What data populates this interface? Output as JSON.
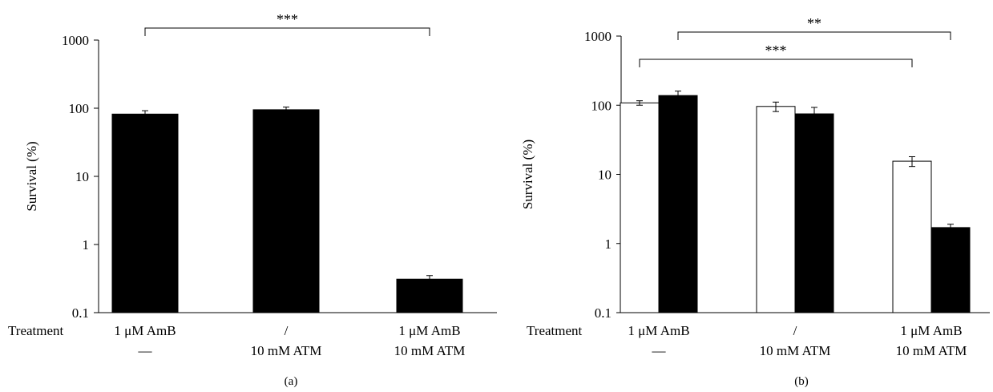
{
  "colors": {
    "ink": "#000000",
    "filled_bar": "#000000",
    "open_bar": "#ffffff"
  },
  "chart_data": [
    {
      "type": "bar",
      "panel_label": "(a)",
      "ylabel": "Survival (%)",
      "yscale": "log",
      "ylim": [
        0.1,
        1000
      ],
      "yticks": [
        "0.1",
        "1",
        "10",
        "100",
        "1000"
      ],
      "treatment_label": "Treatment",
      "categories": [
        {
          "line1": "1 μM AmB",
          "line2": "—"
        },
        {
          "line1": "/",
          "line2": "10 mM ATM"
        },
        {
          "line1": "1 μM AmB",
          "line2": "10 mM ATM"
        }
      ],
      "series": [
        {
          "color": "#000000",
          "values": [
            82,
            95,
            0.31
          ],
          "errors": [
            10,
            9,
            0.04
          ]
        }
      ],
      "significance": [
        {
          "from": 0,
          "to": 2,
          "label": "***"
        }
      ]
    },
    {
      "type": "bar",
      "panel_label": "(b)",
      "ylabel": "Survival (%)",
      "yscale": "log",
      "ylim": [
        0.1,
        1000
      ],
      "yticks": [
        "0.1",
        "1",
        "10",
        "100",
        "1000"
      ],
      "treatment_label": "Treatment",
      "categories": [
        {
          "line1": "1 μM AmB",
          "line2": "—"
        },
        {
          "line1": "/",
          "line2": "10 mM ATM"
        },
        {
          "line1": "1 μM AmB",
          "line2": "10 mM ATM"
        }
      ],
      "series": [
        {
          "color": "#ffffff",
          "values": [
            108,
            96,
            15.5
          ],
          "errors": [
            8,
            15,
            2.5
          ]
        },
        {
          "color": "#000000",
          "values": [
            138,
            75,
            1.7
          ],
          "errors": [
            22,
            18,
            0.2
          ]
        }
      ],
      "significance": [
        {
          "from_bar": [
            0,
            0
          ],
          "to_bar": [
            0,
            2
          ],
          "label": "***"
        },
        {
          "from_bar": [
            1,
            0
          ],
          "to_bar": [
            1,
            2
          ],
          "label": "**"
        }
      ]
    }
  ]
}
